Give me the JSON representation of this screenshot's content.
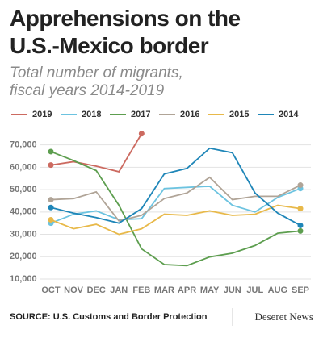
{
  "chart_data": {
    "type": "line",
    "title": "Apprehensions on the U.S.-Mexico border",
    "subtitle": "Total number of migrants, fiscal years 2014-2019",
    "categories": [
      "OCT",
      "NOV",
      "DEC",
      "JAN",
      "FEB",
      "MAR",
      "APR",
      "MAY",
      "JUN",
      "JUL",
      "AUG",
      "SEP"
    ],
    "series": [
      {
        "name": "2019",
        "color": "#cc6a60",
        "values": [
          61000,
          62500,
          60500,
          58000,
          75000,
          null,
          null,
          null,
          null,
          null,
          null,
          null
        ]
      },
      {
        "name": "2018",
        "color": "#6cc3e0",
        "values": [
          35000,
          39000,
          40500,
          36500,
          37000,
          50500,
          51000,
          51500,
          43000,
          40000,
          46500,
          50500
        ]
      },
      {
        "name": "2017",
        "color": "#5d9e4f",
        "values": [
          67000,
          63000,
          58500,
          43000,
          23500,
          16500,
          16000,
          19900,
          21600,
          25000,
          30500,
          31500
        ]
      },
      {
        "name": "2016",
        "color": "#b0a497",
        "values": [
          45500,
          46000,
          49000,
          36000,
          38500,
          46000,
          48500,
          55500,
          45500,
          47000,
          47000,
          52000
        ]
      },
      {
        "name": "2015",
        "color": "#e8b94a",
        "values": [
          36500,
          32500,
          34500,
          30000,
          32500,
          39000,
          38500,
          40500,
          38500,
          39000,
          43000,
          41500
        ]
      },
      {
        "name": "2014",
        "color": "#1f86b8",
        "values": [
          42000,
          39500,
          37500,
          35000,
          41500,
          57000,
          59500,
          68500,
          66500,
          48500,
          39500,
          34000
        ]
      }
    ],
    "ylim": [
      10000,
      76000
    ],
    "yticks": [
      {
        "value": 10000,
        "label": "10,000"
      },
      {
        "value": 20000,
        "label": "20,000"
      },
      {
        "value": 30000,
        "label": "30,000"
      },
      {
        "value": 40000,
        "label": "40,000"
      },
      {
        "value": 50000,
        "label": "50,000"
      },
      {
        "value": 60000,
        "label": "60,000"
      },
      {
        "value": 70000,
        "label": "70,000"
      }
    ],
    "grid": true,
    "source": "SOURCE: U.S. Customs and Border Protection",
    "credit": "Deseret News"
  }
}
